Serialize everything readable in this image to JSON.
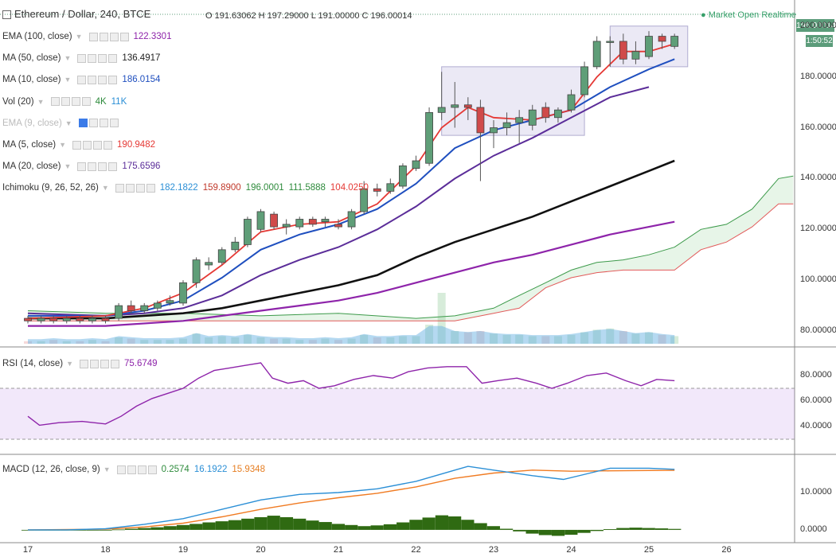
{
  "header": {
    "symbol": "Ethereum / Dollar, 240, BTCE",
    "ohlc": "O 191.63062  H 197.29000  L 191.00000  C 196.00014",
    "market_status": "Market Open",
    "feed": "Realtime"
  },
  "price_badge": "196.00014",
  "time_badge": "1:50:52",
  "indicators": [
    {
      "label": "EMA (100, close)",
      "values": [
        "122.3301"
      ],
      "colors": [
        "#8e24aa"
      ]
    },
    {
      "label": "MA (50, close)",
      "values": [
        "136.4917"
      ],
      "colors": [
        "#222222"
      ]
    },
    {
      "label": "MA (10, close)",
      "values": [
        "186.0154"
      ],
      "colors": [
        "#1f4fbf"
      ]
    },
    {
      "label": "Vol (20)",
      "values": [
        "4K",
        "11K"
      ],
      "colors": [
        "#2e8b3c",
        "#2b8fd6"
      ]
    },
    {
      "label": "EMA (9, close)",
      "values": [],
      "colors": [],
      "hidden": true
    },
    {
      "label": "MA (5, close)",
      "values": [
        "190.9482"
      ],
      "colors": [
        "#e53935"
      ]
    },
    {
      "label": "MA (20, close)",
      "values": [
        "175.6596"
      ],
      "colors": [
        "#5b2d99"
      ]
    },
    {
      "label": "Ichimoku (9, 26, 52, 26)",
      "values": [
        "182.1822",
        "159.8900",
        "196.0001",
        "111.5888",
        "104.0250"
      ],
      "colors": [
        "#2b8fd6",
        "#c0392b",
        "#2e8b3c",
        "#2e8b3c",
        "#e53935"
      ]
    }
  ],
  "rsi_panel": {
    "label": "RSI (14, close)",
    "value": "75.6749",
    "color": "#8e24aa"
  },
  "macd_panel": {
    "label": "MACD (12, 26, close, 9)",
    "values": [
      "0.2574",
      "16.1922",
      "15.9348"
    ],
    "colors": [
      "#2e8b3c",
      "#2b8fd6",
      "#e67e22"
    ]
  },
  "axes": {
    "price_ticks": [
      "200.00000",
      "180.00000",
      "160.00000",
      "140.00000",
      "120.00000",
      "100.00000",
      "80.00000"
    ],
    "rsi_ticks": [
      "80.0000",
      "60.0000",
      "40.0000"
    ],
    "macd_ticks": [
      "10.0000",
      "0.0000"
    ],
    "x_ticks": [
      "17",
      "18",
      "19",
      "20",
      "21",
      "22",
      "23",
      "24",
      "25",
      "26"
    ]
  },
  "chart_data": {
    "type": "candlestick",
    "price_range": [
      75,
      204
    ],
    "candles": [
      {
        "d": 17.0,
        "o": 85,
        "h": 86,
        "l": 83,
        "c": 84
      },
      {
        "d": 17.17,
        "o": 84,
        "h": 86,
        "l": 83,
        "c": 85
      },
      {
        "d": 17.33,
        "o": 85,
        "h": 86,
        "l": 83,
        "c": 84
      },
      {
        "d": 17.5,
        "o": 84,
        "h": 86,
        "l": 83,
        "c": 85
      },
      {
        "d": 17.67,
        "o": 85,
        "h": 86,
        "l": 83,
        "c": 84
      },
      {
        "d": 17.83,
        "o": 84,
        "h": 86,
        "l": 83,
        "c": 85
      },
      {
        "d": 18.0,
        "o": 85,
        "h": 86,
        "l": 83,
        "c": 84
      },
      {
        "d": 18.17,
        "o": 85,
        "h": 91,
        "l": 84,
        "c": 90
      },
      {
        "d": 18.33,
        "o": 90,
        "h": 92,
        "l": 87,
        "c": 88
      },
      {
        "d": 18.5,
        "o": 88,
        "h": 91,
        "l": 87,
        "c": 90
      },
      {
        "d": 18.67,
        "o": 89,
        "h": 92,
        "l": 88,
        "c": 91
      },
      {
        "d": 18.83,
        "o": 91,
        "h": 94,
        "l": 90,
        "c": 92
      },
      {
        "d": 19.0,
        "o": 91,
        "h": 100,
        "l": 90,
        "c": 99
      },
      {
        "d": 19.17,
        "o": 99,
        "h": 109,
        "l": 97,
        "c": 108
      },
      {
        "d": 19.33,
        "o": 106,
        "h": 109,
        "l": 104,
        "c": 107
      },
      {
        "d": 19.5,
        "o": 107,
        "h": 113,
        "l": 106,
        "c": 112
      },
      {
        "d": 19.67,
        "o": 112,
        "h": 117,
        "l": 111,
        "c": 115
      },
      {
        "d": 19.83,
        "o": 114,
        "h": 125,
        "l": 113,
        "c": 124
      },
      {
        "d": 20.0,
        "o": 120,
        "h": 128,
        "l": 119,
        "c": 127
      },
      {
        "d": 20.17,
        "o": 126,
        "h": 127,
        "l": 120,
        "c": 121
      },
      {
        "d": 20.33,
        "o": 121,
        "h": 124,
        "l": 118,
        "c": 122
      },
      {
        "d": 20.5,
        "o": 121,
        "h": 125,
        "l": 120,
        "c": 124
      },
      {
        "d": 20.67,
        "o": 124,
        "h": 125,
        "l": 121,
        "c": 122
      },
      {
        "d": 20.83,
        "o": 123,
        "h": 125,
        "l": 121,
        "c": 124
      },
      {
        "d": 21.0,
        "o": 122,
        "h": 124,
        "l": 120,
        "c": 121
      },
      {
        "d": 21.17,
        "o": 121,
        "h": 128,
        "l": 120,
        "c": 127
      },
      {
        "d": 21.33,
        "o": 127,
        "h": 139,
        "l": 126,
        "c": 136
      },
      {
        "d": 21.5,
        "o": 136,
        "h": 138,
        "l": 133,
        "c": 135
      },
      {
        "d": 21.67,
        "o": 135,
        "h": 140,
        "l": 134,
        "c": 138
      },
      {
        "d": 21.83,
        "o": 137,
        "h": 146,
        "l": 136,
        "c": 145
      },
      {
        "d": 22.0,
        "o": 144,
        "h": 149,
        "l": 143,
        "c": 147
      },
      {
        "d": 22.17,
        "o": 146,
        "h": 168,
        "l": 145,
        "c": 166
      },
      {
        "d": 22.33,
        "o": 166,
        "h": 182,
        "l": 163,
        "c": 168
      },
      {
        "d": 22.5,
        "o": 168,
        "h": 178,
        "l": 160,
        "c": 169
      },
      {
        "d": 22.67,
        "o": 169,
        "h": 172,
        "l": 163,
        "c": 168
      },
      {
        "d": 22.83,
        "o": 168,
        "h": 171,
        "l": 139,
        "c": 158
      },
      {
        "d": 23.0,
        "o": 158,
        "h": 163,
        "l": 152,
        "c": 160
      },
      {
        "d": 23.17,
        "o": 160,
        "h": 166,
        "l": 157,
        "c": 162
      },
      {
        "d": 23.33,
        "o": 162,
        "h": 167,
        "l": 154,
        "c": 164
      },
      {
        "d": 23.5,
        "o": 161,
        "h": 169,
        "l": 159,
        "c": 167
      },
      {
        "d": 23.67,
        "o": 168,
        "h": 170,
        "l": 162,
        "c": 164
      },
      {
        "d": 23.83,
        "o": 164,
        "h": 168,
        "l": 162,
        "c": 167
      },
      {
        "d": 24.0,
        "o": 167,
        "h": 175,
        "l": 166,
        "c": 173
      },
      {
        "d": 24.17,
        "o": 173,
        "h": 186,
        "l": 172,
        "c": 184
      },
      {
        "d": 24.33,
        "o": 184,
        "h": 196,
        "l": 183,
        "c": 194
      },
      {
        "d": 24.5,
        "o": 194,
        "h": 196,
        "l": 184,
        "c": 194
      },
      {
        "d": 24.67,
        "o": 194,
        "h": 197,
        "l": 185,
        "c": 187
      },
      {
        "d": 24.83,
        "o": 187,
        "h": 194,
        "l": 185,
        "c": 190
      },
      {
        "d": 25.0,
        "o": 188,
        "h": 198,
        "l": 187,
        "c": 196
      },
      {
        "d": 25.17,
        "o": 196,
        "h": 197,
        "l": 191,
        "c": 194
      },
      {
        "d": 25.33,
        "o": 192,
        "h": 197,
        "l": 191,
        "c": 196
      }
    ],
    "ma5": [
      [
        17,
        85
      ],
      [
        18,
        86
      ],
      [
        18.5,
        89
      ],
      [
        19,
        95
      ],
      [
        19.5,
        106
      ],
      [
        20,
        119
      ],
      [
        20.5,
        122
      ],
      [
        21,
        123
      ],
      [
        21.5,
        130
      ],
      [
        22,
        145
      ],
      [
        22.33,
        160
      ],
      [
        22.67,
        168
      ],
      [
        23,
        164
      ],
      [
        23.5,
        163
      ],
      [
        24,
        167
      ],
      [
        24.33,
        180
      ],
      [
        24.67,
        190
      ],
      [
        25,
        190
      ],
      [
        25.33,
        193
      ]
    ],
    "ma10": [
      [
        17,
        86
      ],
      [
        18,
        86
      ],
      [
        18.5,
        88
      ],
      [
        19,
        92
      ],
      [
        19.5,
        101
      ],
      [
        20,
        112
      ],
      [
        20.5,
        118
      ],
      [
        21,
        122
      ],
      [
        21.5,
        128
      ],
      [
        22,
        138
      ],
      [
        22.5,
        152
      ],
      [
        23,
        159
      ],
      [
        23.5,
        163
      ],
      [
        24,
        167
      ],
      [
        24.5,
        176
      ],
      [
        25,
        183
      ],
      [
        25.33,
        187
      ]
    ],
    "ma20": [
      [
        17,
        87
      ],
      [
        18,
        86
      ],
      [
        18.5,
        87
      ],
      [
        19,
        89
      ],
      [
        19.5,
        94
      ],
      [
        20,
        102
      ],
      [
        20.5,
        108
      ],
      [
        21,
        113
      ],
      [
        21.5,
        120
      ],
      [
        22,
        129
      ],
      [
        22.5,
        140
      ],
      [
        23,
        149
      ],
      [
        23.5,
        156
      ],
      [
        24,
        164
      ],
      [
        24.5,
        172
      ],
      [
        25,
        176
      ]
    ],
    "ma50": [
      [
        17,
        85
      ],
      [
        18,
        85
      ],
      [
        19,
        87
      ],
      [
        19.5,
        89
      ],
      [
        20,
        92
      ],
      [
        20.5,
        95
      ],
      [
        21,
        98
      ],
      [
        21.5,
        102
      ],
      [
        22,
        109
      ],
      [
        22.5,
        115
      ],
      [
        23,
        120
      ],
      [
        23.5,
        125
      ],
      [
        24,
        131
      ],
      [
        24.5,
        137
      ],
      [
        25,
        143
      ],
      [
        25.33,
        147
      ]
    ],
    "ema100": [
      [
        17,
        82
      ],
      [
        18,
        82
      ],
      [
        19,
        84
      ],
      [
        19.5,
        86
      ],
      [
        20,
        88
      ],
      [
        20.5,
        90
      ],
      [
        21,
        92
      ],
      [
        21.5,
        95
      ],
      [
        22,
        99
      ],
      [
        22.5,
        103
      ],
      [
        23,
        107
      ],
      [
        23.5,
        110
      ],
      [
        24,
        114
      ],
      [
        24.5,
        118
      ],
      [
        25,
        121
      ],
      [
        25.33,
        123
      ]
    ],
    "ichimoku_span_a": [
      [
        17,
        88
      ],
      [
        18,
        87
      ],
      [
        19,
        87
      ],
      [
        20,
        86
      ],
      [
        21,
        87
      ],
      [
        22,
        85
      ],
      [
        22.5,
        86
      ],
      [
        23,
        89
      ],
      [
        23.33,
        94
      ],
      [
        23.67,
        99
      ],
      [
        24,
        104
      ],
      [
        24.33,
        107
      ],
      [
        24.67,
        108
      ],
      [
        25,
        110
      ],
      [
        25.33,
        113
      ],
      [
        25.67,
        120
      ],
      [
        26,
        122
      ],
      [
        26.33,
        128
      ],
      [
        26.67,
        140
      ],
      [
        26.86,
        141
      ]
    ],
    "ichimoku_span_b": [
      [
        17,
        84
      ],
      [
        18,
        84
      ],
      [
        19,
        84
      ],
      [
        20,
        84
      ],
      [
        21,
        84
      ],
      [
        22,
        84
      ],
      [
        22.5,
        84
      ],
      [
        23,
        87
      ],
      [
        23.33,
        89
      ],
      [
        23.67,
        97
      ],
      [
        24,
        101
      ],
      [
        24.33,
        103
      ],
      [
        24.67,
        104
      ],
      [
        25,
        104
      ],
      [
        25.33,
        104
      ],
      [
        25.67,
        112
      ],
      [
        26,
        115
      ],
      [
        26.33,
        121
      ],
      [
        26.67,
        130
      ],
      [
        26.86,
        130
      ]
    ],
    "volume": [
      2,
      2,
      3,
      2,
      2,
      3,
      2,
      5,
      4,
      3,
      3,
      3,
      4,
      8,
      5,
      6,
      5,
      7,
      5,
      4,
      4,
      3,
      3,
      4,
      3,
      4,
      7,
      5,
      5,
      6,
      6,
      15,
      40,
      10,
      9,
      10,
      8,
      7,
      7,
      6,
      6,
      6,
      7,
      9,
      11,
      12,
      10,
      8,
      9,
      7,
      6
    ],
    "rsi": {
      "range": [
        20,
        100
      ],
      "overbought": 70,
      "oversold": 30,
      "values": [
        [
          17,
          48
        ],
        [
          17.15,
          41
        ],
        [
          17.4,
          43
        ],
        [
          17.7,
          44
        ],
        [
          18,
          42
        ],
        [
          18.2,
          48
        ],
        [
          18.4,
          56
        ],
        [
          18.6,
          62
        ],
        [
          18.8,
          66
        ],
        [
          19,
          70
        ],
        [
          19.2,
          78
        ],
        [
          19.4,
          84
        ],
        [
          19.6,
          86
        ],
        [
          19.8,
          88
        ],
        [
          20,
          90
        ],
        [
          20.15,
          78
        ],
        [
          20.35,
          74
        ],
        [
          20.55,
          76
        ],
        [
          20.75,
          70
        ],
        [
          20.95,
          72
        ],
        [
          21.2,
          77
        ],
        [
          21.45,
          80
        ],
        [
          21.7,
          78
        ],
        [
          21.9,
          83
        ],
        [
          22.15,
          86
        ],
        [
          22.4,
          87
        ],
        [
          22.65,
          87
        ],
        [
          22.85,
          74
        ],
        [
          23.05,
          76
        ],
        [
          23.3,
          78
        ],
        [
          23.55,
          74
        ],
        [
          23.75,
          70
        ],
        [
          23.95,
          74
        ],
        [
          24.2,
          80
        ],
        [
          24.45,
          82
        ],
        [
          24.7,
          76
        ],
        [
          24.9,
          72
        ],
        [
          25.1,
          77
        ],
        [
          25.33,
          76
        ]
      ]
    },
    "macd": {
      "range": [
        -3,
        20
      ],
      "macd_line": [
        [
          17,
          0
        ],
        [
          17.5,
          0
        ],
        [
          18,
          0.3
        ],
        [
          18.5,
          1.5
        ],
        [
          19,
          3
        ],
        [
          19.5,
          5.5
        ],
        [
          20,
          8
        ],
        [
          20.5,
          9.5
        ],
        [
          21,
          10
        ],
        [
          21.5,
          11
        ],
        [
          22,
          13
        ],
        [
          22.5,
          16
        ],
        [
          22.67,
          17
        ],
        [
          23,
          16
        ],
        [
          23.5,
          14.5
        ],
        [
          23.9,
          13.5
        ],
        [
          24.2,
          15
        ],
        [
          24.5,
          16.5
        ],
        [
          25,
          16.5
        ],
        [
          25.33,
          16.2
        ]
      ],
      "signal_line": [
        [
          17,
          0
        ],
        [
          18,
          0.2
        ],
        [
          18.5,
          0.8
        ],
        [
          19,
          1.8
        ],
        [
          19.5,
          3.5
        ],
        [
          20,
          5.5
        ],
        [
          20.5,
          7.2
        ],
        [
          21,
          8.6
        ],
        [
          21.5,
          9.8
        ],
        [
          22,
          11.5
        ],
        [
          22.5,
          13.8
        ],
        [
          23,
          15.2
        ],
        [
          23.5,
          16
        ],
        [
          24,
          15.7
        ],
        [
          24.5,
          15.8
        ],
        [
          25,
          15.9
        ],
        [
          25.33,
          15.93
        ]
      ],
      "histogram": [
        0,
        0,
        0,
        0,
        0,
        0,
        0,
        0.1,
        0.3,
        0.5,
        0.7,
        1,
        1.3,
        1.6,
        2,
        2.3,
        2.6,
        3,
        3.4,
        3.8,
        3.4,
        3,
        2.5,
        2.1,
        1.6,
        1.3,
        1,
        1.2,
        1.5,
        2,
        2.7,
        3.3,
        3.9,
        3.6,
        2.7,
        1.8,
        1,
        0.3,
        -0.4,
        -1,
        -1.4,
        -1.6,
        -1.3,
        -0.8,
        -0.3,
        0.2,
        0.5,
        0.6,
        0.5,
        0.4,
        0.26
      ]
    },
    "highlight_boxes": [
      {
        "x0": 22.33,
        "x1": 24.17,
        "y0": 157,
        "y1": 184
      },
      {
        "x0": 24.5,
        "x1": 25.5,
        "y0": 184,
        "y1": 200
      }
    ]
  }
}
